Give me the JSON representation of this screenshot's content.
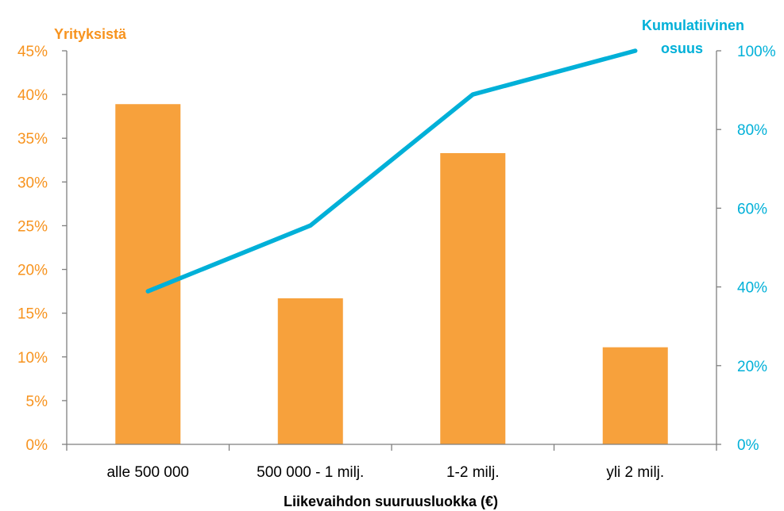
{
  "chart_data": {
    "type": "bar",
    "categories": [
      "alle 500 000",
      "500 000 - 1 milj.",
      "1-2 milj.",
      "yli 2 milj."
    ],
    "series": [
      {
        "type": "bar",
        "axis": "left",
        "color": "#f7a13c",
        "values": [
          38.9,
          16.7,
          33.3,
          11.1
        ]
      },
      {
        "type": "line",
        "axis": "right",
        "color": "#00b0d8",
        "values": [
          38.9,
          55.6,
          88.9,
          100
        ]
      }
    ],
    "ylabel_left": "Yrityksistä",
    "ylabel_right_lines": [
      "Kumulatiivinen",
      "osuus"
    ],
    "xlabel": "Liikevaihdon suuruusluokka (€)",
    "ylim_left": [
      0,
      45
    ],
    "ylim_right": [
      0,
      100
    ],
    "yticks_left": [
      "0%",
      "5%",
      "10%",
      "15%",
      "20%",
      "25%",
      "30%",
      "35%",
      "40%",
      "45%"
    ],
    "yticks_right": [
      "0%",
      "20%",
      "40%",
      "60%",
      "80%",
      "100%"
    ],
    "grid": false,
    "legend": "none",
    "colors": {
      "left_axis_text": "#f7931e",
      "right_axis_text": "#00b0d8",
      "axis_line": "#7f7f7f"
    }
  }
}
